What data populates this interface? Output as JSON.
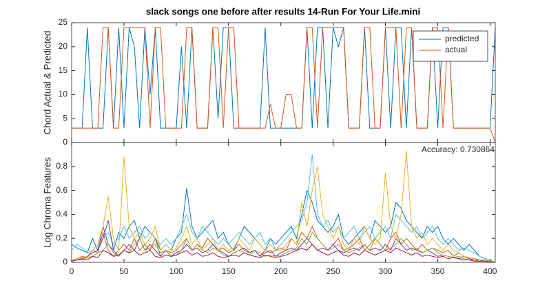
{
  "chart_data": [
    {
      "type": "line",
      "title": "slack songs one before after results 14-Run For Your Life.mini",
      "y_label": "Chord Actual & Predicted",
      "x": [
        0,
        5,
        10,
        15,
        20,
        25,
        30,
        35,
        40,
        45,
        50,
        55,
        60,
        65,
        70,
        75,
        80,
        85,
        90,
        95,
        100,
        105,
        110,
        115,
        120,
        125,
        130,
        135,
        140,
        145,
        150,
        155,
        160,
        165,
        170,
        175,
        180,
        185,
        190,
        195,
        200,
        205,
        210,
        215,
        220,
        225,
        230,
        235,
        240,
        245,
        250,
        255,
        260,
        265,
        270,
        275,
        280,
        285,
        290,
        295,
        300,
        305,
        310,
        315,
        320,
        325,
        330,
        335,
        340,
        345,
        350,
        355,
        360,
        365,
        370,
        375,
        380,
        385,
        390,
        395,
        400,
        405
      ],
      "series": [
        {
          "name": "predicted",
          "color": "#0072bd",
          "values": [
            3,
            3,
            3,
            24,
            3,
            3,
            3,
            24,
            3,
            24,
            3,
            24,
            20,
            3,
            24,
            10,
            24,
            3,
            3,
            3,
            3,
            20,
            3,
            24,
            3,
            3,
            3,
            24,
            5,
            24,
            24,
            3,
            3,
            3,
            3,
            3,
            3,
            24,
            3,
            3,
            3,
            3,
            3,
            3,
            3,
            24,
            3,
            24,
            24,
            3,
            24,
            20,
            24,
            3,
            3,
            3,
            24,
            3,
            3,
            3,
            24,
            3,
            24,
            24,
            3,
            24,
            3,
            3,
            3,
            24,
            3,
            24,
            24,
            3,
            3,
            3,
            3,
            3,
            3,
            3,
            3,
            24
          ]
        },
        {
          "name": "actual",
          "color": "#d95319",
          "values": [
            3,
            3,
            3,
            3,
            3,
            3,
            24,
            24,
            3,
            3,
            24,
            24,
            24,
            24,
            24,
            3,
            24,
            24,
            3,
            3,
            3,
            3,
            24,
            24,
            3,
            3,
            3,
            24,
            24,
            3,
            24,
            24,
            3,
            3,
            3,
            3,
            3,
            3,
            8,
            3,
            3,
            10,
            10,
            3,
            3,
            24,
            24,
            3,
            24,
            24,
            24,
            24,
            24,
            3,
            3,
            3,
            24,
            24,
            3,
            3,
            24,
            24,
            24,
            3,
            24,
            24,
            3,
            3,
            3,
            24,
            24,
            3,
            24,
            3,
            3,
            3,
            3,
            3,
            3,
            3,
            3,
            0
          ]
        }
      ],
      "xlim": [
        0,
        405
      ],
      "xticks": [
        0,
        50,
        100,
        150,
        200,
        250,
        300,
        350,
        400
      ],
      "ylim": [
        0,
        25
      ],
      "yticks": [
        0,
        5,
        10,
        15,
        20,
        25
      ],
      "legend": "upper right"
    },
    {
      "type": "line",
      "y_label": "Log Chroma Features",
      "annotation": "Accuracy: 0.730864",
      "x": [
        0,
        5,
        10,
        15,
        20,
        25,
        30,
        35,
        40,
        45,
        50,
        55,
        60,
        65,
        70,
        75,
        80,
        85,
        90,
        95,
        100,
        105,
        110,
        115,
        120,
        125,
        130,
        135,
        140,
        145,
        150,
        155,
        160,
        165,
        170,
        175,
        180,
        185,
        190,
        195,
        200,
        205,
        210,
        215,
        220,
        225,
        230,
        235,
        240,
        245,
        250,
        255,
        260,
        265,
        270,
        275,
        280,
        285,
        290,
        295,
        300,
        305,
        310,
        315,
        320,
        325,
        330,
        335,
        340,
        345,
        350,
        355,
        360,
        365,
        370,
        375,
        380,
        385,
        390,
        395,
        400,
        405
      ],
      "series": [
        {
          "color": "#0072bd",
          "values": [
            0.15,
            0.12,
            0.1,
            0.08,
            0.2,
            0.1,
            0.3,
            0.15,
            0.1,
            0.25,
            0.2,
            0.3,
            0.35,
            0.2,
            0.3,
            0.25,
            0.2,
            0.1,
            0.15,
            0.1,
            0.2,
            0.25,
            0.62,
            0.3,
            0.2,
            0.25,
            0.3,
            0.35,
            0.2,
            0.25,
            0.15,
            0.1,
            0.2,
            0.3,
            0.25,
            0.2,
            0.15,
            0.1,
            0.2,
            0.15,
            0.2,
            0.25,
            0.3,
            0.2,
            0.4,
            0.6,
            0.5,
            0.35,
            0.3,
            0.25,
            0.3,
            0.4,
            0.2,
            0.15,
            0.2,
            0.25,
            0.3,
            0.2,
            0.35,
            0.3,
            0.25,
            0.3,
            0.5,
            0.45,
            0.35,
            0.3,
            0.25,
            0.2,
            0.3,
            0.25,
            0.3,
            0.2,
            0.15,
            0.2,
            0.15,
            0.1,
            0.15,
            0.1,
            0.05,
            0.03,
            0.02,
            0
          ]
        },
        {
          "color": "#4dbeee",
          "values": [
            0.1,
            0.15,
            0.12,
            0.08,
            0.1,
            0.15,
            0.2,
            0.25,
            0.15,
            0.2,
            0.3,
            0.2,
            0.25,
            0.3,
            0.2,
            0.25,
            0.2,
            0.15,
            0.2,
            0.15,
            0.2,
            0.3,
            0.4,
            0.25,
            0.2,
            0.3,
            0.25,
            0.2,
            0.15,
            0.2,
            0.15,
            0.2,
            0.25,
            0.2,
            0.15,
            0.2,
            0.25,
            0.15,
            0.2,
            0.1,
            0.15,
            0.2,
            0.25,
            0.3,
            0.35,
            0.5,
            0.9,
            0.4,
            0.3,
            0.35,
            0.25,
            0.3,
            0.2,
            0.25,
            0.3,
            0.2,
            0.25,
            0.3,
            0.2,
            0.25,
            0.3,
            0.2,
            0.4,
            0.35,
            0.3,
            0.25,
            0.3,
            0.2,
            0.25,
            0.3,
            0.2,
            0.15,
            0.2,
            0.15,
            0.1,
            0.12,
            0.1,
            0.08,
            0.05,
            0.03,
            0.02,
            0
          ]
        },
        {
          "color": "#d95319",
          "values": [
            0.02,
            0.03,
            0.05,
            0.04,
            0.1,
            0.08,
            0.25,
            0.1,
            0.05,
            0.1,
            0.15,
            0.1,
            0.2,
            0.1,
            0.15,
            0.1,
            0.2,
            0.05,
            0.1,
            0.08,
            0.1,
            0.15,
            0.2,
            0.1,
            0.15,
            0.12,
            0.2,
            0.15,
            0.1,
            0.12,
            0.08,
            0.1,
            0.15,
            0.1,
            0.08,
            0.1,
            0.05,
            0.1,
            0.08,
            0.1,
            0.12,
            0.1,
            0.2,
            0.15,
            0.25,
            0.2,
            0.3,
            0.2,
            0.15,
            0.1,
            0.15,
            0.2,
            0.1,
            0.12,
            0.15,
            0.2,
            0.1,
            0.15,
            0.2,
            0.15,
            0.1,
            0.2,
            0.25,
            0.15,
            0.2,
            0.15,
            0.1,
            0.15,
            0.1,
            0.12,
            0.1,
            0.08,
            0.1,
            0.05,
            0.08,
            0.05,
            0.04,
            0.03,
            0.02,
            0.02,
            0.01,
            0
          ]
        },
        {
          "color": "#7e2f8e",
          "values": [
            0.01,
            0.02,
            0.03,
            0.05,
            0.08,
            0.1,
            0.2,
            0.35,
            0.1,
            0.05,
            0.1,
            0.15,
            0.1,
            0.2,
            0.1,
            0.15,
            0.1,
            0.05,
            0.1,
            0.05,
            0.08,
            0.1,
            0.15,
            0.1,
            0.12,
            0.08,
            0.1,
            0.15,
            0.1,
            0.08,
            0.05,
            0.08,
            0.1,
            0.12,
            0.08,
            0.1,
            0.05,
            0.08,
            0.1,
            0.05,
            0.08,
            0.1,
            0.12,
            0.1,
            0.15,
            0.2,
            0.15,
            0.1,
            0.12,
            0.1,
            0.15,
            0.1,
            0.08,
            0.1,
            0.12,
            0.1,
            0.15,
            0.1,
            0.12,
            0.1,
            0.15,
            0.1,
            0.2,
            0.15,
            0.1,
            0.12,
            0.1,
            0.08,
            0.1,
            0.08,
            0.05,
            0.06,
            0.05,
            0.04,
            0.03,
            0.05,
            0.03,
            0.02,
            0.02,
            0.01,
            0.01,
            0
          ]
        },
        {
          "color": "#77ac30",
          "values": [
            0.01,
            0.02,
            0.02,
            0.04,
            0.05,
            0.08,
            0.1,
            0.15,
            0.08,
            0.05,
            0.1,
            0.08,
            0.15,
            0.2,
            0.1,
            0.12,
            0.15,
            0.08,
            0.1,
            0.05,
            0.06,
            0.1,
            0.2,
            0.1,
            0.15,
            0.1,
            0.08,
            0.12,
            0.1,
            0.06,
            0.05,
            0.08,
            0.1,
            0.08,
            0.06,
            0.1,
            0.08,
            0.05,
            0.06,
            0.05,
            0.06,
            0.08,
            0.1,
            0.12,
            0.2,
            0.15,
            0.25,
            0.2,
            0.15,
            0.1,
            0.12,
            0.15,
            0.1,
            0.08,
            0.1,
            0.12,
            0.15,
            0.1,
            0.2,
            0.15,
            0.1,
            0.12,
            0.15,
            0.2,
            0.15,
            0.1,
            0.12,
            0.08,
            0.1,
            0.12,
            0.08,
            0.06,
            0.05,
            0.04,
            0.05,
            0.03,
            0.02,
            0.02,
            0.01,
            0.01,
            0.01,
            0
          ]
        },
        {
          "color": "#a2142f",
          "values": [
            0.01,
            0.02,
            0.03,
            0.02,
            0.05,
            0.04,
            0.1,
            0.08,
            0.05,
            0.06,
            0.1,
            0.08,
            0.1,
            0.06,
            0.08,
            0.1,
            0.05,
            0.04,
            0.06,
            0.05,
            0.06,
            0.08,
            0.1,
            0.06,
            0.08,
            0.05,
            0.06,
            0.08,
            0.05,
            0.04,
            0.05,
            0.06,
            0.05,
            0.08,
            0.06,
            0.05,
            0.04,
            0.06,
            0.05,
            0.04,
            0.05,
            0.06,
            0.08,
            0.1,
            0.12,
            0.1,
            0.15,
            0.1,
            0.08,
            0.06,
            0.08,
            0.1,
            0.06,
            0.05,
            0.08,
            0.06,
            0.1,
            0.08,
            0.06,
            0.08,
            0.1,
            0.08,
            0.12,
            0.1,
            0.08,
            0.06,
            0.08,
            0.05,
            0.06,
            0.05,
            0.04,
            0.05,
            0.03,
            0.04,
            0.03,
            0.02,
            0.02,
            0.01,
            0.01,
            0.01,
            0,
            0
          ]
        },
        {
          "color": "#edb120",
          "values": [
            0.02,
            0.03,
            0.04,
            0.05,
            0.1,
            0.15,
            0.3,
            0.55,
            0.2,
            0.1,
            0.88,
            0.3,
            0.2,
            0.25,
            0.15,
            0.2,
            0.3,
            0.1,
            0.15,
            0.1,
            0.12,
            0.2,
            0.3,
            0.15,
            0.2,
            0.1,
            0.15,
            0.2,
            0.1,
            0.15,
            0.1,
            0.12,
            0.2,
            0.15,
            0.1,
            0.2,
            0.15,
            0.1,
            0.15,
            0.1,
            0.1,
            0.15,
            0.2,
            0.15,
            0.5,
            0.3,
            0.6,
            0.8,
            0.4,
            0.3,
            0.2,
            0.3,
            0.15,
            0.1,
            0.2,
            0.15,
            0.3,
            0.2,
            0.15,
            0.2,
            0.75,
            0.3,
            0.2,
            0.4,
            0.93,
            0.3,
            0.2,
            0.25,
            0.15,
            0.2,
            0.15,
            0.1,
            0.15,
            0.1,
            0.08,
            0.05,
            0.04,
            0.03,
            0.02,
            0.02,
            0.01,
            0
          ]
        }
      ],
      "xlim": [
        0,
        405
      ],
      "xticks": [
        0,
        50,
        100,
        150,
        200,
        250,
        300,
        350,
        400
      ],
      "xtick_labels": true,
      "ylim": [
        0,
        1
      ],
      "yticks": [
        0,
        0.2,
        0.4,
        0.6,
        0.8
      ]
    }
  ]
}
